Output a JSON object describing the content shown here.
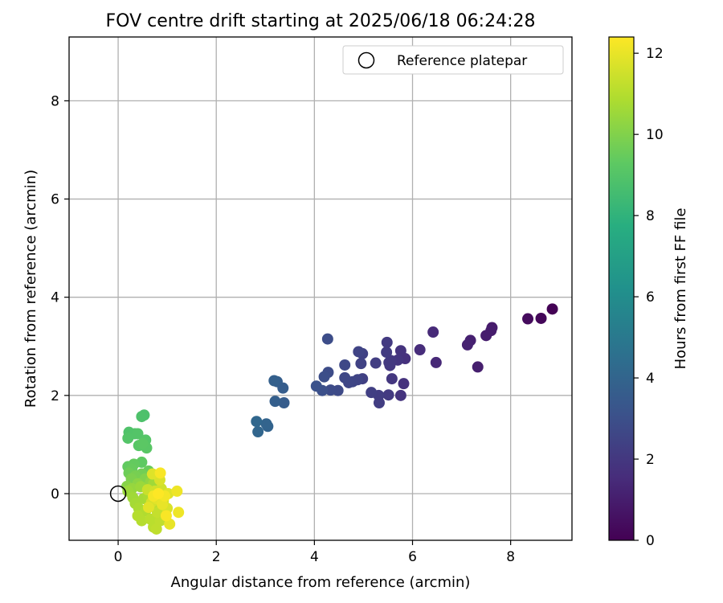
{
  "chart_data": {
    "type": "scatter",
    "title": "FOV centre drift starting at 2025/06/18 06:24:28",
    "xlabel": "Angular distance from reference (arcmin)",
    "ylabel": "Rotation from reference (arcmin)",
    "xlim": [
      -1.0,
      9.25
    ],
    "ylim": [
      -0.95,
      9.3
    ],
    "xticks": [
      0,
      2,
      4,
      6,
      8
    ],
    "yticks": [
      0,
      2,
      4,
      6,
      8
    ],
    "grid": true,
    "legend": {
      "placement": "top-right",
      "entries": [
        "Reference platepar"
      ]
    },
    "colorbar": {
      "label": "Hours from first FF file",
      "range": [
        0,
        12.4
      ],
      "ticks": [
        0,
        2,
        4,
        6,
        8,
        10,
        12
      ],
      "colormap": "viridis"
    },
    "reference_point": {
      "x": 0,
      "y": 0,
      "label": "Reference platepar"
    },
    "series": [
      {
        "points": [
          {
            "x": 8.85,
            "y": 3.76,
            "c": 0.05
          },
          {
            "x": 8.62,
            "y": 3.57,
            "c": 0.2
          },
          {
            "x": 8.35,
            "y": 3.56,
            "c": 0.35
          },
          {
            "x": 7.62,
            "y": 3.38,
            "c": 0.9
          },
          {
            "x": 7.6,
            "y": 3.32,
            "c": 0.95
          },
          {
            "x": 7.5,
            "y": 3.22,
            "c": 1.0
          },
          {
            "x": 7.33,
            "y": 2.58,
            "c": 1.05
          },
          {
            "x": 7.18,
            "y": 3.12,
            "c": 1.1
          },
          {
            "x": 7.12,
            "y": 3.03,
            "c": 1.15
          },
          {
            "x": 6.48,
            "y": 2.67,
            "c": 1.4
          },
          {
            "x": 6.42,
            "y": 3.29,
            "c": 1.45
          },
          {
            "x": 6.15,
            "y": 2.93,
            "c": 1.55
          },
          {
            "x": 5.85,
            "y": 2.75,
            "c": 1.7
          },
          {
            "x": 5.82,
            "y": 2.24,
            "c": 1.75
          },
          {
            "x": 5.76,
            "y": 2.91,
            "c": 1.8
          },
          {
            "x": 5.76,
            "y": 2.0,
            "c": 1.85
          },
          {
            "x": 5.7,
            "y": 2.72,
            "c": 1.9
          },
          {
            "x": 5.58,
            "y": 2.34,
            "c": 1.95
          },
          {
            "x": 5.56,
            "y": 2.71,
            "c": 2.0
          },
          {
            "x": 5.54,
            "y": 2.61,
            "c": 2.0
          },
          {
            "x": 5.52,
            "y": 2.67,
            "c": 2.05
          },
          {
            "x": 5.51,
            "y": 2.01,
            "c": 2.1
          },
          {
            "x": 5.48,
            "y": 3.08,
            "c": 2.1
          },
          {
            "x": 5.47,
            "y": 2.88,
            "c": 2.15
          },
          {
            "x": 5.32,
            "y": 1.85,
            "c": 2.2
          },
          {
            "x": 5.31,
            "y": 2.0,
            "c": 2.2
          },
          {
            "x": 5.25,
            "y": 2.66,
            "c": 2.25
          },
          {
            "x": 5.16,
            "y": 2.06,
            "c": 2.3
          },
          {
            "x": 4.98,
            "y": 2.34,
            "c": 2.35
          },
          {
            "x": 4.98,
            "y": 2.85,
            "c": 2.4
          },
          {
            "x": 4.95,
            "y": 2.65,
            "c": 2.45
          },
          {
            "x": 4.9,
            "y": 2.89,
            "c": 2.5
          },
          {
            "x": 4.88,
            "y": 2.32,
            "c": 2.5
          },
          {
            "x": 4.78,
            "y": 2.28,
            "c": 2.55
          },
          {
            "x": 4.7,
            "y": 2.26,
            "c": 2.6
          },
          {
            "x": 4.62,
            "y": 2.36,
            "c": 2.65
          },
          {
            "x": 4.62,
            "y": 2.62,
            "c": 2.7
          },
          {
            "x": 4.48,
            "y": 2.1,
            "c": 2.75
          },
          {
            "x": 4.33,
            "y": 2.11,
            "c": 2.8
          },
          {
            "x": 4.28,
            "y": 2.47,
            "c": 2.85
          },
          {
            "x": 4.27,
            "y": 3.15,
            "c": 2.9
          },
          {
            "x": 4.2,
            "y": 2.38,
            "c": 2.95
          },
          {
            "x": 4.16,
            "y": 2.1,
            "c": 3.0
          },
          {
            "x": 4.04,
            "y": 2.19,
            "c": 3.1
          },
          {
            "x": 3.38,
            "y": 1.85,
            "c": 3.6
          },
          {
            "x": 3.36,
            "y": 2.15,
            "c": 3.65
          },
          {
            "x": 3.24,
            "y": 2.28,
            "c": 3.7
          },
          {
            "x": 3.2,
            "y": 1.88,
            "c": 3.75
          },
          {
            "x": 3.18,
            "y": 2.3,
            "c": 3.8
          },
          {
            "x": 3.05,
            "y": 1.37,
            "c": 3.9
          },
          {
            "x": 3.02,
            "y": 1.42,
            "c": 3.95
          },
          {
            "x": 2.85,
            "y": 1.26,
            "c": 4.05
          },
          {
            "x": 2.82,
            "y": 1.47,
            "c": 4.1
          },
          {
            "x": 0.53,
            "y": 1.6,
            "c": 8.8
          },
          {
            "x": 0.48,
            "y": 1.57,
            "c": 8.85
          },
          {
            "x": 0.22,
            "y": 1.25,
            "c": 8.9
          },
          {
            "x": 0.34,
            "y": 1.22,
            "c": 8.95
          },
          {
            "x": 0.4,
            "y": 1.22,
            "c": 9.0
          },
          {
            "x": 0.2,
            "y": 1.13,
            "c": 9.0
          },
          {
            "x": 0.56,
            "y": 1.09,
            "c": 9.05
          },
          {
            "x": 0.42,
            "y": 0.98,
            "c": 9.1
          },
          {
            "x": 0.58,
            "y": 0.93,
            "c": 9.15
          },
          {
            "x": 0.5,
            "y": 1.02,
            "c": 9.2
          },
          {
            "x": 0.48,
            "y": 0.64,
            "c": 9.3
          },
          {
            "x": 0.2,
            "y": 0.55,
            "c": 9.35
          },
          {
            "x": 0.32,
            "y": 0.6,
            "c": 9.4
          },
          {
            "x": 0.28,
            "y": 0.5,
            "c": 9.45
          },
          {
            "x": 0.62,
            "y": 0.46,
            "c": 9.5
          },
          {
            "x": 0.22,
            "y": 0.42,
            "c": 9.6
          },
          {
            "x": 0.48,
            "y": 0.4,
            "c": 9.7
          },
          {
            "x": 0.35,
            "y": 0.36,
            "c": 9.8
          },
          {
            "x": 0.27,
            "y": 0.3,
            "c": 9.9
          },
          {
            "x": 0.55,
            "y": 0.3,
            "c": 10.0
          },
          {
            "x": 0.18,
            "y": 0.15,
            "c": 10.1
          },
          {
            "x": 0.4,
            "y": 0.2,
            "c": 10.2
          },
          {
            "x": 0.66,
            "y": 0.24,
            "c": 10.3
          },
          {
            "x": 0.28,
            "y": 0.1,
            "c": 10.4
          },
          {
            "x": 0.2,
            "y": 0.05,
            "c": 10.5
          },
          {
            "x": 0.46,
            "y": 0.14,
            "c": 10.5
          },
          {
            "x": 0.72,
            "y": 0.2,
            "c": 10.6
          },
          {
            "x": 0.3,
            "y": -0.08,
            "c": 10.6
          },
          {
            "x": 0.52,
            "y": -0.1,
            "c": 10.7
          },
          {
            "x": 0.35,
            "y": -0.2,
            "c": 10.7
          },
          {
            "x": 0.62,
            "y": -0.05,
            "c": 10.8
          },
          {
            "x": 0.42,
            "y": -0.3,
            "c": 10.8
          },
          {
            "x": 0.7,
            "y": -0.25,
            "c": 10.9
          },
          {
            "x": 0.56,
            "y": -0.35,
            "c": 10.9
          },
          {
            "x": 0.4,
            "y": -0.45,
            "c": 11.0
          },
          {
            "x": 0.48,
            "y": -0.55,
            "c": 11.0
          },
          {
            "x": 0.66,
            "y": -0.52,
            "c": 11.1
          },
          {
            "x": 0.72,
            "y": -0.68,
            "c": 11.1
          },
          {
            "x": 0.78,
            "y": -0.72,
            "c": 11.2
          },
          {
            "x": 0.86,
            "y": -0.55,
            "c": 11.2
          },
          {
            "x": 0.8,
            "y": -0.38,
            "c": 11.3
          },
          {
            "x": 0.95,
            "y": -0.4,
            "c": 11.3
          },
          {
            "x": 0.6,
            "y": 0.08,
            "c": 11.4
          },
          {
            "x": 0.75,
            "y": 0.05,
            "c": 11.5
          },
          {
            "x": 0.88,
            "y": 0.1,
            "c": 11.5
          },
          {
            "x": 0.92,
            "y": -0.15,
            "c": 11.6
          },
          {
            "x": 0.68,
            "y": -0.18,
            "c": 11.6
          },
          {
            "x": 1.0,
            "y": -0.3,
            "c": 11.7
          },
          {
            "x": 0.85,
            "y": 0.28,
            "c": 11.7
          },
          {
            "x": 0.7,
            "y": 0.4,
            "c": 11.8
          },
          {
            "x": 1.02,
            "y": 0.0,
            "c": 11.8
          },
          {
            "x": 0.78,
            "y": -0.1,
            "c": 11.9
          },
          {
            "x": 0.62,
            "y": -0.28,
            "c": 11.9
          },
          {
            "x": 0.9,
            "y": -0.22,
            "c": 12.0
          },
          {
            "x": 1.05,
            "y": -0.62,
            "c": 12.0
          },
          {
            "x": 1.2,
            "y": 0.05,
            "c": 12.1
          },
          {
            "x": 1.23,
            "y": -0.38,
            "c": 12.1
          },
          {
            "x": 0.95,
            "y": -0.05,
            "c": 12.2
          },
          {
            "x": 0.72,
            "y": -0.05,
            "c": 12.2
          },
          {
            "x": 0.86,
            "y": 0.42,
            "c": 12.3
          },
          {
            "x": 0.98,
            "y": -0.45,
            "c": 12.3
          },
          {
            "x": 0.82,
            "y": 0.0,
            "c": 12.4
          }
        ]
      }
    ]
  }
}
